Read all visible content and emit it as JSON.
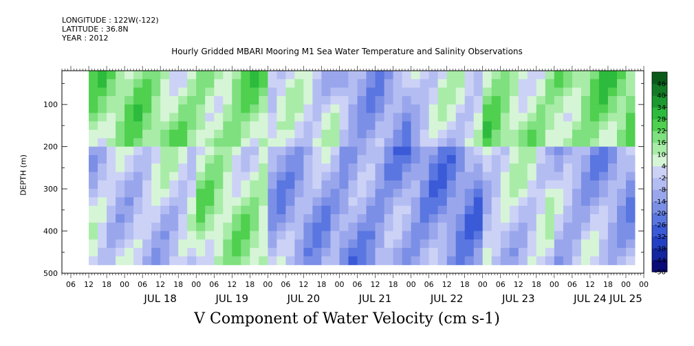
{
  "header": {
    "longitude": "LONGITUDE : 122W(-122)",
    "latitude": "LATITUDE : 36.8N",
    "year": "YEAR : 2012"
  },
  "chart_data": {
    "type": "heatmap",
    "title": "Hourly Gridded MBARI Mooring M1 Sea Water Temperature and Salinity Observations",
    "xlabel": "V Component of Water Velocity (cm s-1)",
    "ylabel": "DEPTH (m)",
    "x_range": [
      "2012-07-17 03:00",
      "2012-07-25 06:00"
    ],
    "data_x_range": [
      "2012-07-17 12:00",
      "2012-07-25 03:00"
    ],
    "y_range": [
      500,
      20
    ],
    "y_reversed": true,
    "y_ticks": [
      100,
      200,
      300,
      400,
      500
    ],
    "x_hour_ticks": [
      "06",
      "12",
      "18",
      "00",
      "06",
      "12",
      "18",
      "00",
      "06",
      "12",
      "18",
      "00",
      "06",
      "12",
      "18",
      "00",
      "06",
      "12",
      "18",
      "00",
      "06",
      "12",
      "18",
      "00",
      "06",
      "12",
      "18",
      "00",
      "06",
      "12",
      "18",
      "00",
      "00"
    ],
    "x_day_labels": [
      "JUL 18",
      "JUL 19",
      "JUL 20",
      "JUL 21",
      "JUL 22",
      "JUL 23",
      "JUL 24",
      "JUL 25"
    ],
    "colorbar_levels": [
      -50,
      -44,
      -38,
      -32,
      -26,
      -20,
      -14,
      -8,
      -2,
      4,
      10,
      16,
      22,
      28,
      34,
      40,
      46
    ],
    "colorbar_colors": [
      "#0a0a78",
      "#1426a0",
      "#2340c4",
      "#3a5ad8",
      "#5a76e0",
      "#7b8fe6",
      "#9aa6ec",
      "#b4bdf2",
      "#ccd2f6",
      "#d6f5d6",
      "#a8eca8",
      "#7ee07e",
      "#4fd04f",
      "#2dbb3d",
      "#1c9a30",
      "#137a25",
      "#0b5a1a"
    ],
    "series_summary": [
      {
        "day": "JUL 18",
        "upper_0_200m": "positive 10 to 22",
        "lower_200_480m": "mixed -8 to 10"
      },
      {
        "day": "JUL 19",
        "upper_0_200m": "positive 10 to 28",
        "lower_200_480m": "positive 4 to 16"
      },
      {
        "day": "JUL 20",
        "upper_0_200m": "mixed -8 to 10",
        "lower_200_480m": "negative -14 to -2"
      },
      {
        "day": "JUL 21",
        "upper_0_200m": "negative -14 to -2",
        "lower_200_480m": "negative -20 to -8"
      },
      {
        "day": "JUL 22",
        "upper_0_200m": "mixed -8 to 10",
        "lower_200_480m": "negative -20 to -8"
      },
      {
        "day": "JUL 23",
        "upper_0_200m": "positive 10 to 22",
        "lower_200_480m": "mixed -8 to 10"
      },
      {
        "day": "JUL 24",
        "upper_0_200m": "positive 10 to 28",
        "lower_200_480m": "negative -14 to -2"
      }
    ]
  }
}
